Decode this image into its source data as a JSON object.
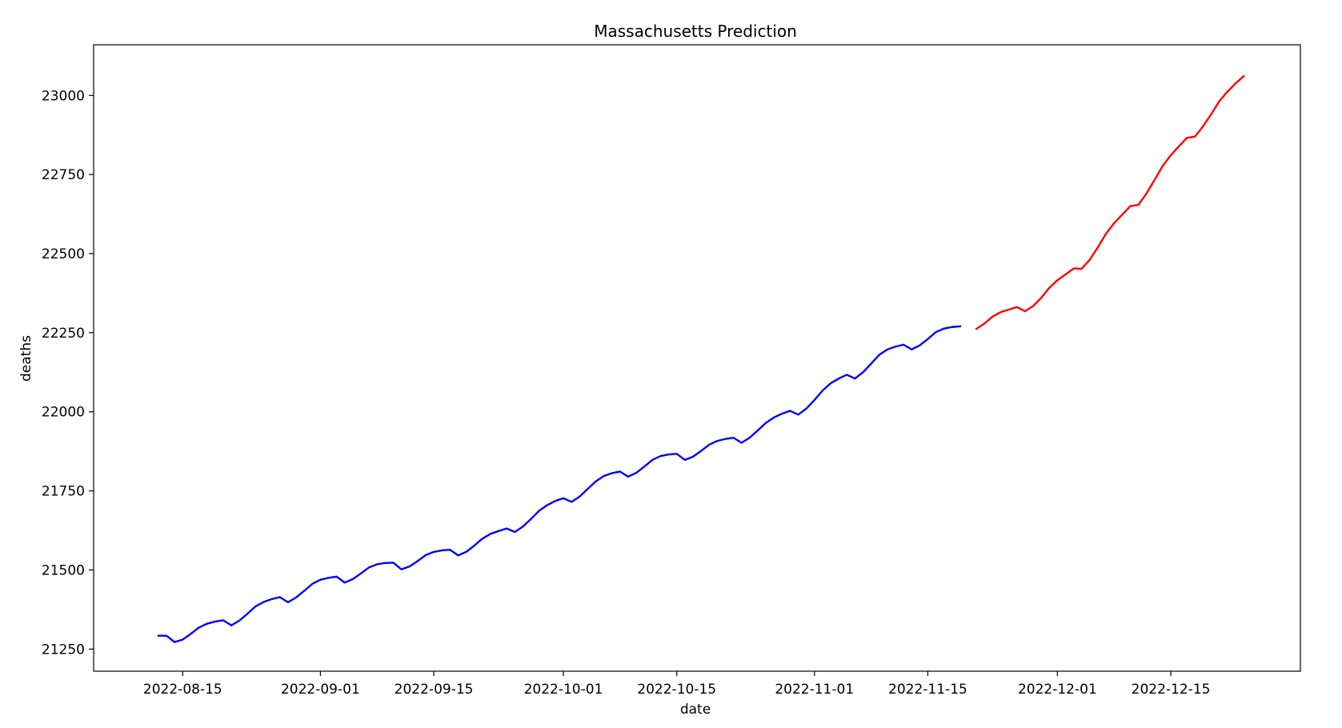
{
  "chart_data": {
    "type": "line",
    "title": "Massachusetts Prediction",
    "xlabel": "date",
    "ylabel": "deaths",
    "xlim": [
      "2022-08-04",
      "2022-12-31"
    ],
    "ylim": [
      21180,
      23160
    ],
    "x_ticks": [
      "2022-08-15",
      "2022-09-01",
      "2022-09-15",
      "2022-10-01",
      "2022-10-15",
      "2022-11-01",
      "2022-11-15",
      "2022-12-01",
      "2022-12-15"
    ],
    "y_ticks": [
      21250,
      21500,
      21750,
      22000,
      22250,
      22500,
      22750,
      23000
    ],
    "grid": false,
    "legend": "none",
    "series": [
      {
        "color": "#0000ff",
        "points": [
          [
            "2022-08-12",
            21292
          ],
          [
            "2022-08-13",
            21292
          ],
          [
            "2022-08-14",
            21272
          ],
          [
            "2022-08-15",
            21280
          ],
          [
            "2022-08-16",
            21298
          ],
          [
            "2022-08-17",
            21318
          ],
          [
            "2022-08-18",
            21330
          ],
          [
            "2022-08-19",
            21337
          ],
          [
            "2022-08-20",
            21341
          ],
          [
            "2022-08-21",
            21325
          ],
          [
            "2022-08-22",
            21340
          ],
          [
            "2022-08-23",
            21362
          ],
          [
            "2022-08-24",
            21385
          ],
          [
            "2022-08-25",
            21399
          ],
          [
            "2022-08-26",
            21408
          ],
          [
            "2022-08-27",
            21414
          ],
          [
            "2022-08-28",
            21398
          ],
          [
            "2022-08-29",
            21413
          ],
          [
            "2022-08-30",
            21434
          ],
          [
            "2022-08-31",
            21456
          ],
          [
            "2022-09-01",
            21469
          ],
          [
            "2022-09-02",
            21475
          ],
          [
            "2022-09-03",
            21479
          ],
          [
            "2022-09-04",
            21460
          ],
          [
            "2022-09-05",
            21471
          ],
          [
            "2022-09-06",
            21489
          ],
          [
            "2022-09-07",
            21508
          ],
          [
            "2022-09-08",
            21518
          ],
          [
            "2022-09-09",
            21522
          ],
          [
            "2022-09-10",
            21523
          ],
          [
            "2022-09-11",
            21502
          ],
          [
            "2022-09-12",
            21511
          ],
          [
            "2022-09-13",
            21528
          ],
          [
            "2022-09-14",
            21547
          ],
          [
            "2022-09-15",
            21557
          ],
          [
            "2022-09-16",
            21562
          ],
          [
            "2022-09-17",
            21564
          ],
          [
            "2022-09-18",
            21546
          ],
          [
            "2022-09-19",
            21557
          ],
          [
            "2022-09-20",
            21577
          ],
          [
            "2022-09-21",
            21599
          ],
          [
            "2022-09-22",
            21614
          ],
          [
            "2022-09-23",
            21623
          ],
          [
            "2022-09-24",
            21631
          ],
          [
            "2022-09-25",
            21620
          ],
          [
            "2022-09-26",
            21637
          ],
          [
            "2022-09-27",
            21661
          ],
          [
            "2022-09-28",
            21687
          ],
          [
            "2022-09-29",
            21705
          ],
          [
            "2022-09-30",
            21718
          ],
          [
            "2022-10-01",
            21727
          ],
          [
            "2022-10-02",
            21715
          ],
          [
            "2022-10-03",
            21732
          ],
          [
            "2022-10-04",
            21756
          ],
          [
            "2022-10-05",
            21780
          ],
          [
            "2022-10-06",
            21797
          ],
          [
            "2022-10-07",
            21806
          ],
          [
            "2022-10-08",
            21811
          ],
          [
            "2022-10-09",
            21795
          ],
          [
            "2022-10-10",
            21807
          ],
          [
            "2022-10-11",
            21827
          ],
          [
            "2022-10-12",
            21848
          ],
          [
            "2022-10-13",
            21860
          ],
          [
            "2022-10-14",
            21865
          ],
          [
            "2022-10-15",
            21867
          ],
          [
            "2022-10-16",
            21848
          ],
          [
            "2022-10-17",
            21858
          ],
          [
            "2022-10-18",
            21876
          ],
          [
            "2022-10-19",
            21896
          ],
          [
            "2022-10-20",
            21908
          ],
          [
            "2022-10-21",
            21914
          ],
          [
            "2022-10-22",
            21918
          ],
          [
            "2022-10-23",
            21902
          ],
          [
            "2022-10-24",
            21918
          ],
          [
            "2022-10-25",
            21941
          ],
          [
            "2022-10-26",
            21965
          ],
          [
            "2022-10-27",
            21982
          ],
          [
            "2022-10-28",
            21994
          ],
          [
            "2022-10-29",
            22003
          ],
          [
            "2022-10-30",
            21991
          ],
          [
            "2022-10-31",
            22010
          ],
          [
            "2022-11-01",
            22037
          ],
          [
            "2022-11-02",
            22067
          ],
          [
            "2022-11-03",
            22090
          ],
          [
            "2022-11-04",
            22105
          ],
          [
            "2022-11-05",
            22117
          ],
          [
            "2022-11-06",
            22105
          ],
          [
            "2022-11-07",
            22125
          ],
          [
            "2022-11-08",
            22152
          ],
          [
            "2022-11-09",
            22180
          ],
          [
            "2022-11-10",
            22197
          ],
          [
            "2022-11-11",
            22206
          ],
          [
            "2022-11-12",
            22212
          ],
          [
            "2022-11-13",
            22197
          ],
          [
            "2022-11-14",
            22210
          ],
          [
            "2022-11-15",
            22230
          ],
          [
            "2022-11-16",
            22252
          ],
          [
            "2022-11-17",
            22263
          ],
          [
            "2022-11-18",
            22268
          ],
          [
            "2022-11-19",
            22270
          ]
        ]
      },
      {
        "color": "#ff0000",
        "points": [
          [
            "2022-11-21",
            22262
          ],
          [
            "2022-11-22",
            22279
          ],
          [
            "2022-11-23",
            22301
          ],
          [
            "2022-11-24",
            22315
          ],
          [
            "2022-11-25",
            22323
          ],
          [
            "2022-11-26",
            22331
          ],
          [
            "2022-11-27",
            22318
          ],
          [
            "2022-11-28",
            22334
          ],
          [
            "2022-11-29",
            22360
          ],
          [
            "2022-11-30",
            22392
          ],
          [
            "2022-12-01",
            22416
          ],
          [
            "2022-12-02",
            22434
          ],
          [
            "2022-12-03",
            22453
          ],
          [
            "2022-12-04",
            22452
          ],
          [
            "2022-12-05",
            22481
          ],
          [
            "2022-12-06",
            22520
          ],
          [
            "2022-12-07",
            22563
          ],
          [
            "2022-12-08",
            22596
          ],
          [
            "2022-12-09",
            22623
          ],
          [
            "2022-12-10",
            22650
          ],
          [
            "2022-12-11",
            22654
          ],
          [
            "2022-12-12",
            22690
          ],
          [
            "2022-12-13",
            22733
          ],
          [
            "2022-12-14",
            22777
          ],
          [
            "2022-12-15",
            22811
          ],
          [
            "2022-12-16",
            22839
          ],
          [
            "2022-12-17",
            22866
          ],
          [
            "2022-12-18",
            22870
          ],
          [
            "2022-12-19",
            22903
          ],
          [
            "2022-12-20",
            22941
          ],
          [
            "2022-12-21",
            22982
          ],
          [
            "2022-12-22",
            23012
          ],
          [
            "2022-12-23",
            23038
          ],
          [
            "2022-12-24",
            23061
          ]
        ]
      }
    ]
  }
}
